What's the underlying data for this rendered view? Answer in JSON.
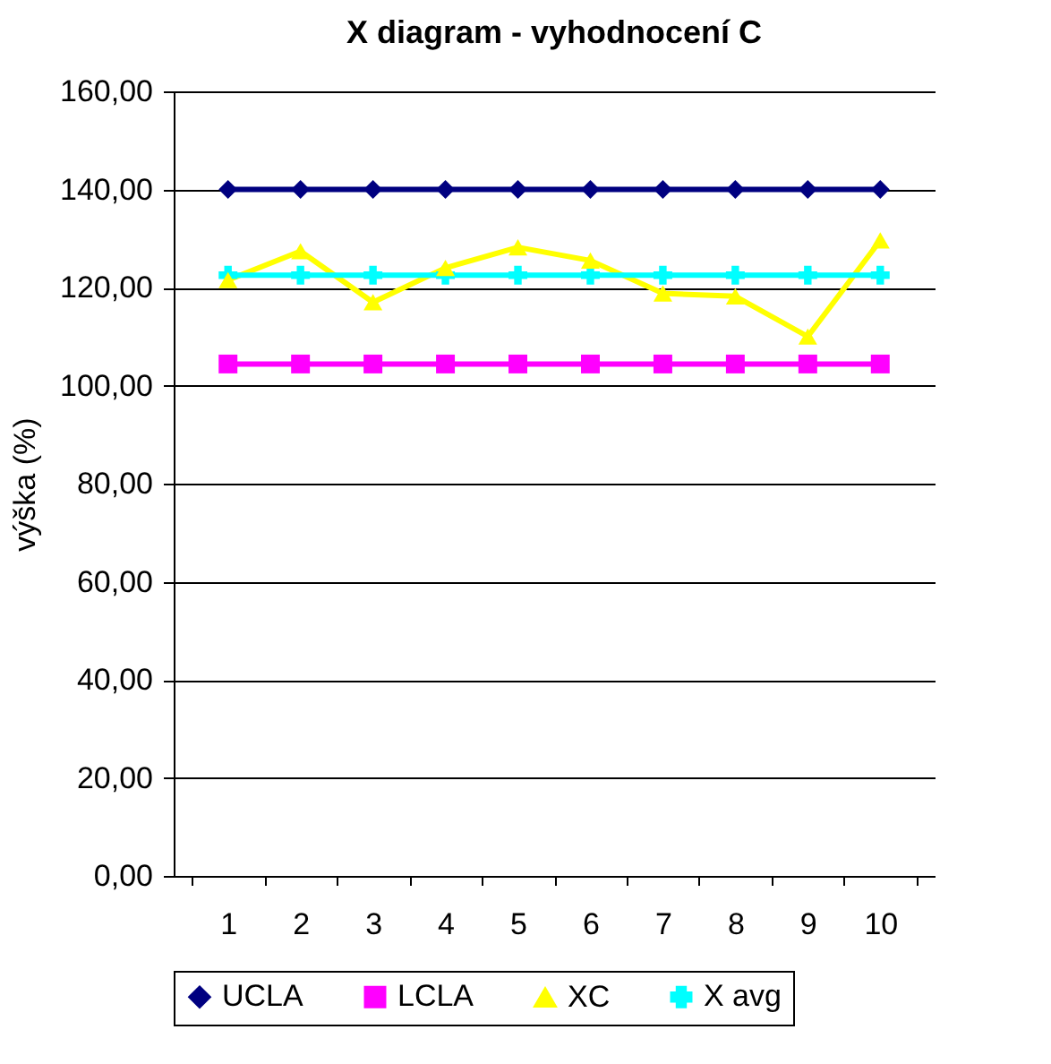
{
  "chart_data": {
    "type": "line",
    "title": "X diagram - vyhodnocení C",
    "ylabel": "výška (%)",
    "categories": [
      "1",
      "2",
      "3",
      "4",
      "5",
      "6",
      "7",
      "8",
      "9",
      "10"
    ],
    "series": [
      {
        "name": "UCLA",
        "color": "#000080",
        "marker": "diamond",
        "values": [
          140,
          140,
          140,
          140,
          140,
          140,
          140,
          140,
          140,
          140
        ]
      },
      {
        "name": "LCLA",
        "color": "#ff00ff",
        "marker": "square",
        "values": [
          104.4,
          104.4,
          104.4,
          104.4,
          104.4,
          104.4,
          104.4,
          104.4,
          104.4,
          104.4
        ]
      },
      {
        "name": "XC",
        "color": "#ffff00",
        "marker": "triangle",
        "values": [
          121.5,
          127.4,
          117,
          124,
          128.2,
          125.5,
          118.8,
          118.2,
          110,
          129.6
        ]
      },
      {
        "name": "X avg",
        "color": "#00ffff",
        "marker": "cross",
        "values": [
          122.5,
          122.5,
          122.5,
          122.5,
          122.5,
          122.5,
          122.5,
          122.5,
          122.5,
          122.5
        ]
      }
    ],
    "ylim": [
      0,
      160
    ],
    "yticks": [
      {
        "value": 0,
        "label": "0,00"
      },
      {
        "value": 20,
        "label": "20,00"
      },
      {
        "value": 40,
        "label": "40,00"
      },
      {
        "value": 60,
        "label": "60,00"
      },
      {
        "value": 80,
        "label": "80,00"
      },
      {
        "value": 100,
        "label": "100,00"
      },
      {
        "value": 120,
        "label": "120,00"
      },
      {
        "value": 140,
        "label": "140,00"
      },
      {
        "value": 160,
        "label": "160,00"
      }
    ],
    "grid": "y",
    "legend": "bottom"
  }
}
